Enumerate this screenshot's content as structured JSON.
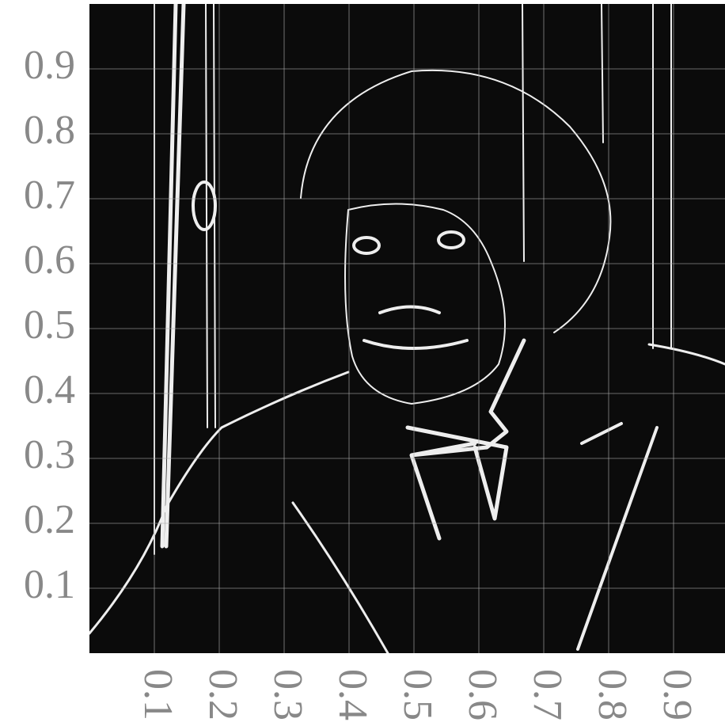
{
  "chart_data": {
    "type": "image",
    "xlim": [
      0,
      1
    ],
    "ylim": [
      0,
      1
    ],
    "xticks": [
      0.1,
      0.2,
      0.3,
      0.4,
      0.5,
      0.6,
      0.7,
      0.8,
      0.9
    ],
    "yticks": [
      0.1,
      0.2,
      0.3,
      0.4,
      0.5,
      0.6,
      0.7,
      0.8,
      0.9
    ],
    "grid": true
  }
}
